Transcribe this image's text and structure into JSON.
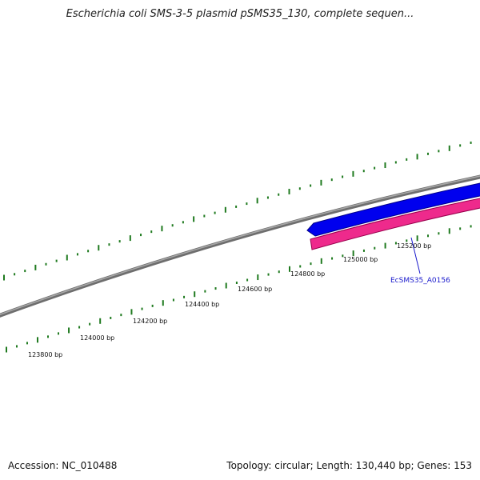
{
  "title": "Escherichia coli SMS-3-5 plasmid pSMS35_130, complete sequen...",
  "footer": {
    "accession": "Accession: NC_010488",
    "summary": "Topology: circular; Length: 130,440 bp; Genes: 153"
  },
  "ticks": {
    "labels": [
      "123800 bp",
      "124000 bp",
      "124200 bp",
      "124400 bp",
      "124600 bp",
      "124800 bp",
      "125000 bp",
      "125200 bp"
    ]
  },
  "genes": [
    {
      "label": "",
      "strand": "forward",
      "color": "#0000ee"
    },
    {
      "label": "EcSMS35_A0156",
      "strand": "reverse",
      "color": "#ee2a8c"
    }
  ],
  "colors": {
    "backbone": "#808080",
    "ticks": "#1f7a1f",
    "label_link": "#1a1acc"
  }
}
